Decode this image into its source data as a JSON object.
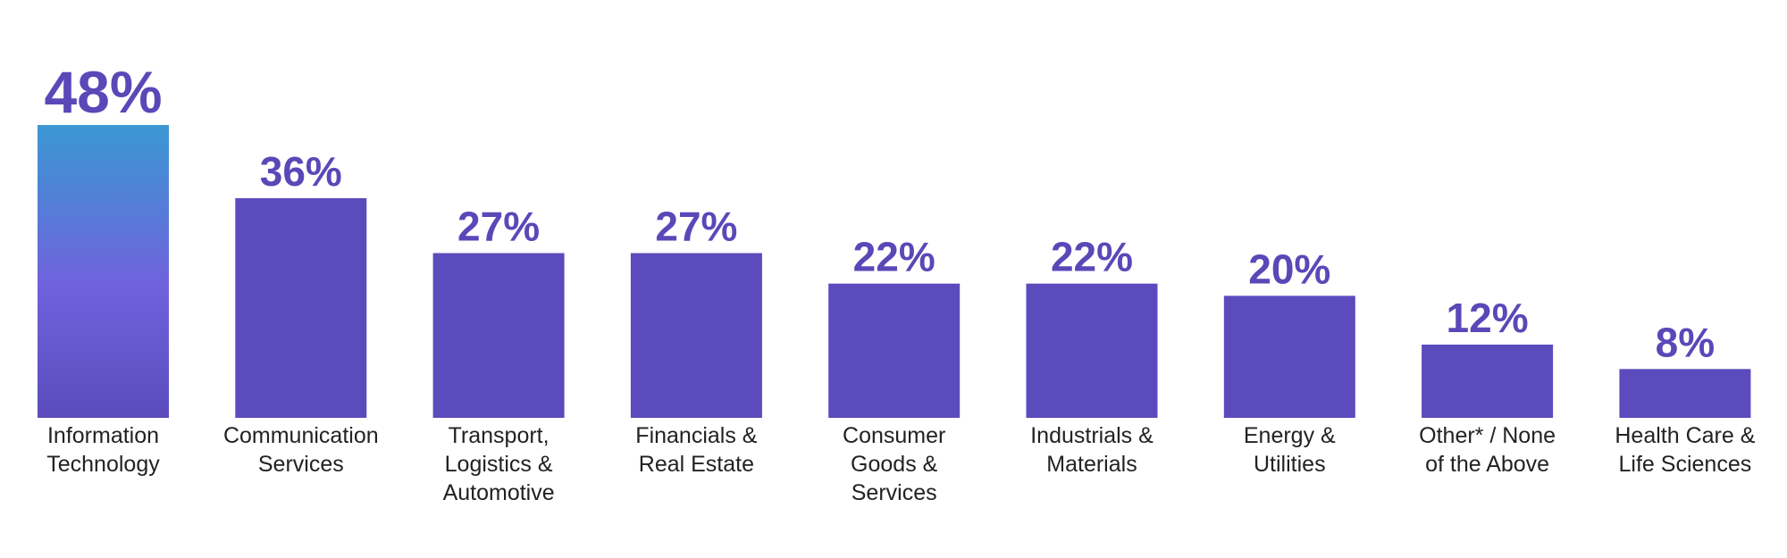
{
  "chart_data": {
    "type": "bar",
    "categories": [
      "Information\nTechnology",
      "Communication\nServices",
      "Transport,\nLogistics &\nAutomotive",
      "Financials &\nReal Estate",
      "Consumer\nGoods &\nServices",
      "Industrials &\nMaterials",
      "Energy &\nUtilities",
      "Other* / None\nof the Above",
      "Health Care &\nLife Sciences"
    ],
    "values": [
      48,
      36,
      27,
      27,
      22,
      22,
      20,
      12,
      8
    ],
    "value_labels": [
      "48%",
      "36%",
      "27%",
      "27%",
      "22%",
      "22%",
      "20%",
      "12%",
      "8%"
    ],
    "color": "#5b4bbd"
  }
}
